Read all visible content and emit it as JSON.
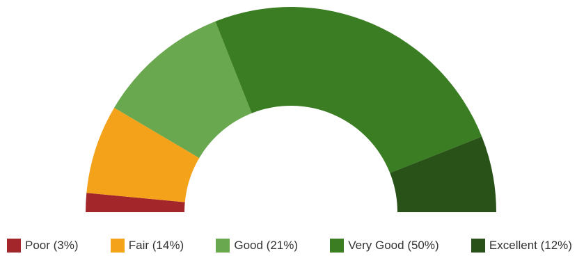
{
  "chart_data": {
    "type": "pie",
    "subtype": "semi-donut",
    "title": "",
    "categories": [
      "Poor",
      "Fair",
      "Good",
      "Very Good",
      "Excellent"
    ],
    "values": [
      3,
      14,
      21,
      50,
      12
    ],
    "unit": "%",
    "colors": [
      "#a3262a",
      "#f5a21b",
      "#6aa84f",
      "#3a7d22",
      "#285218"
    ],
    "legend": {
      "position": "bottom",
      "items": [
        {
          "label": "Poor (3%)",
          "color": "#a3262a"
        },
        {
          "label": "Fair (14%)",
          "color": "#f5a21b"
        },
        {
          "label": "Good (21%)",
          "color": "#6aa84f"
        },
        {
          "label": "Very Good (50%)",
          "color": "#3a7d22"
        },
        {
          "label": "Excellent (12%)",
          "color": "#285218"
        }
      ]
    }
  }
}
